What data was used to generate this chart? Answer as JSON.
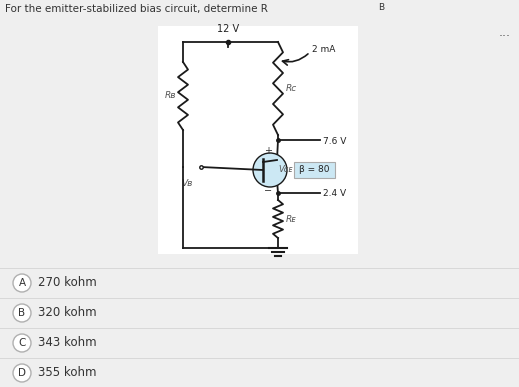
{
  "title": "For the emitter-stabilized bias circuit, determine Rв",
  "title_text": "For the emitter-stabilized bias circuit, determine R",
  "title_sub": "B",
  "vcc": "12 V",
  "ic": "2 mA",
  "vc": "7.6 V",
  "ve": "2.4 V",
  "beta": "β = 80",
  "rc_label": "Rᴄ",
  "rb_label": "Rʙ",
  "re_label": "Rᴇ",
  "vce_label": "Vᴄᴇ",
  "vb_label": "Vʙ",
  "choices": [
    "270 kohm",
    "320 kohm",
    "343 kohm",
    "355 kohm"
  ],
  "choice_labels": [
    "A",
    "B",
    "C",
    "D"
  ],
  "bg_color": "#efefef",
  "circuit_bg": "#ffffff",
  "highlight_color": "#cce8f4",
  "wire_color": "#1a1a1a",
  "title_fontsize": 7.5,
  "choice_fontsize": 8.5
}
